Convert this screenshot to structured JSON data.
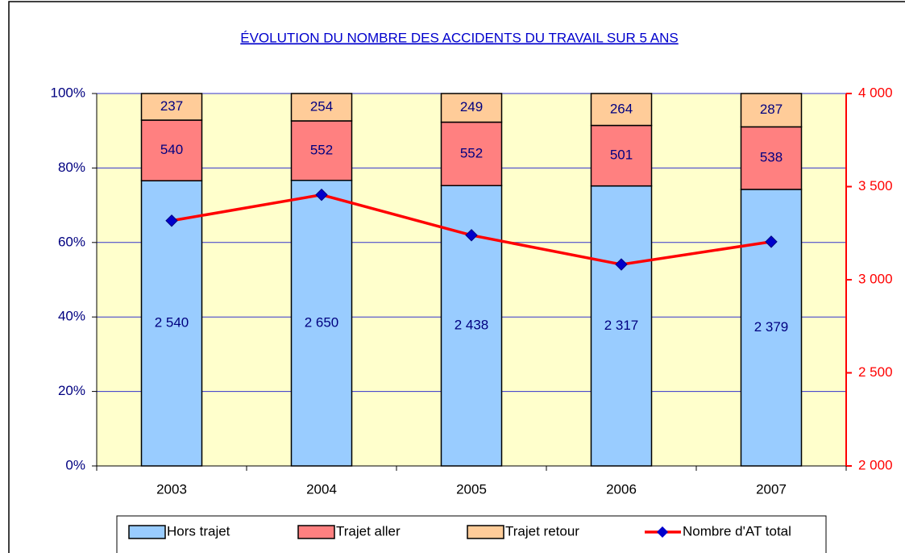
{
  "chart_data": {
    "type": "bar",
    "stacking": "percent",
    "title": "ÉVOLUTION DU NOMBRE DES ACCIDENTS DU TRAVAIL SUR 5 ANS",
    "categories": [
      "2003",
      "2004",
      "2005",
      "2006",
      "2007"
    ],
    "series": [
      {
        "name": "Hors trajet",
        "color": "#99ccff",
        "values": [
          2540,
          2650,
          2438,
          2317,
          2379
        ],
        "value_labels": [
          "2 540",
          "2 650",
          "2 438",
          "2 317",
          "2 379"
        ]
      },
      {
        "name": "Trajet aller",
        "color": "#ff8080",
        "values": [
          540,
          552,
          552,
          501,
          538
        ]
      },
      {
        "name": "Trajet retour",
        "color": "#ffcc99",
        "values": [
          237,
          254,
          249,
          264,
          287
        ]
      },
      {
        "name": "Nombre d'AT total",
        "type": "line",
        "axis": "y2",
        "color": "#ff0000",
        "marker_color": "#0000cc",
        "values": [
          3317,
          3456,
          3239,
          3082,
          3204
        ]
      }
    ],
    "ylim": [
      0,
      100
    ],
    "yticks": [
      {
        "value": 0,
        "label": "0%"
      },
      {
        "value": 20,
        "label": "20%"
      },
      {
        "value": 40,
        "label": "40%"
      },
      {
        "value": 60,
        "label": "60%"
      },
      {
        "value": 80,
        "label": "80%"
      },
      {
        "value": 100,
        "label": "100%"
      }
    ],
    "y2lim": [
      2000,
      4000
    ],
    "y2ticks": [
      {
        "value": 2000,
        "label": "2 000"
      },
      {
        "value": 2500,
        "label": "2 500"
      },
      {
        "value": 3000,
        "label": "3 000"
      },
      {
        "value": 3500,
        "label": "3 500"
      },
      {
        "value": 4000,
        "label": "4 000"
      }
    ],
    "grid": true,
    "legend": "bottom"
  }
}
